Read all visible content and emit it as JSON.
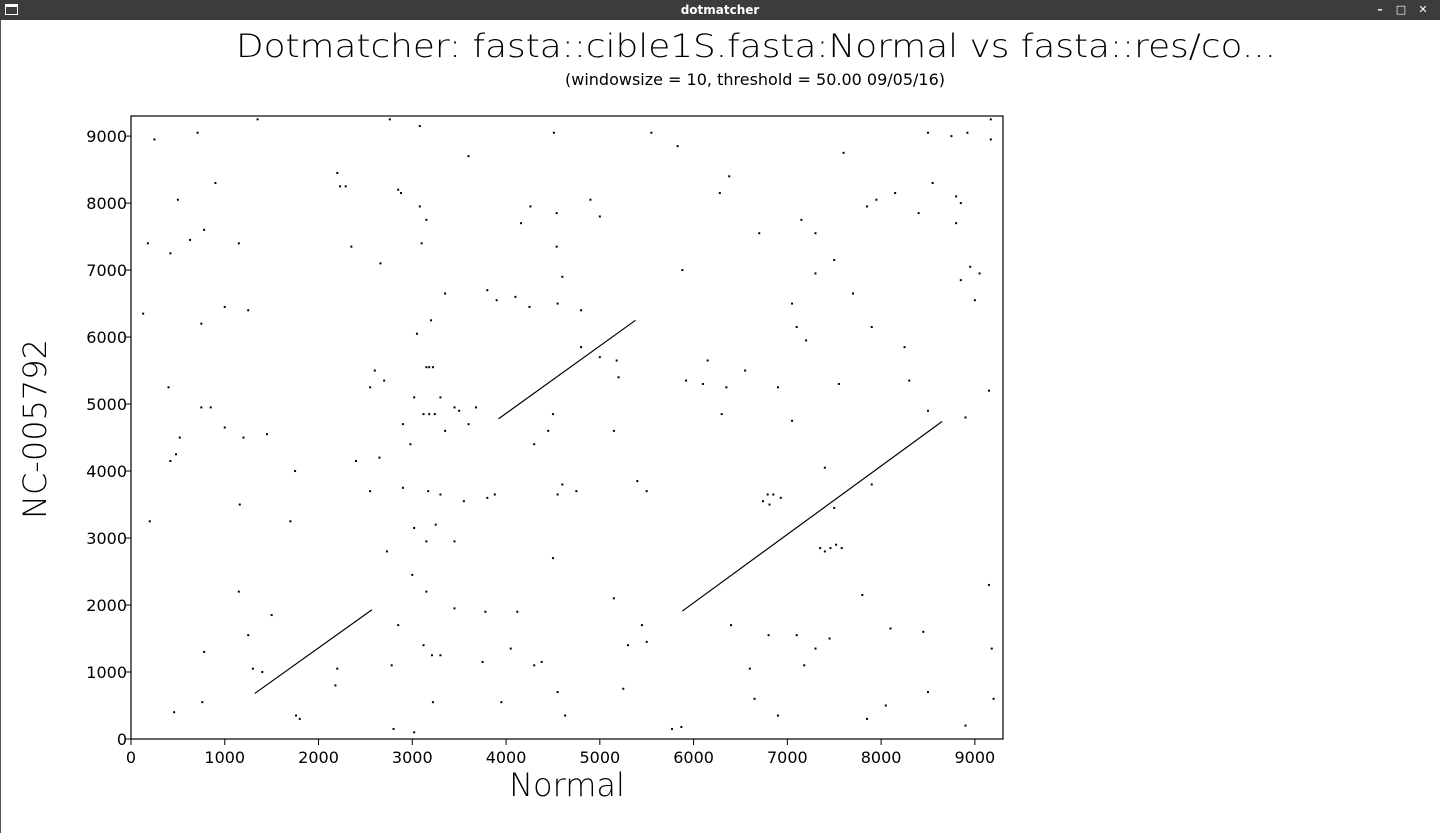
{
  "window": {
    "title": "dotmatcher"
  },
  "titlebar_icons": [
    "app-window-icon",
    "minimize-icon",
    "maximize-icon",
    "close-icon"
  ],
  "chart_data": {
    "type": "scatter",
    "title": "Dotmatcher: fasta::cible1S.fasta:Normal vs fasta::res/co...",
    "subtitle": "(windowsize = 10, threshold = 50.00  09/05/16)",
    "xlabel": "Normal",
    "ylabel": "NC-005792",
    "xlim": [
      0,
      9300
    ],
    "ylim": [
      0,
      9300
    ],
    "xticks": [
      0,
      1000,
      2000,
      3000,
      4000,
      5000,
      6000,
      7000,
      8000,
      9000
    ],
    "yticks": [
      0,
      1000,
      2000,
      3000,
      4000,
      5000,
      6000,
      7000,
      8000,
      9000
    ],
    "grid": false,
    "color": "#000000",
    "segments": [
      {
        "x": [
          1320,
          2570
        ],
        "y": [
          680,
          1930
        ]
      },
      {
        "x": [
          3920,
          5380
        ],
        "y": [
          4780,
          6250
        ]
      },
      {
        "x": [
          5880,
          8650
        ],
        "y": [
          1910,
          4740
        ]
      }
    ],
    "points": [
      [
        250,
        8950
      ],
      [
        710,
        9050
      ],
      [
        1350,
        9250
      ],
      [
        2760,
        9250
      ],
      [
        3080,
        9150
      ],
      [
        4510,
        9050
      ],
      [
        5550,
        9050
      ],
      [
        5830,
        8850
      ],
      [
        8500,
        9050
      ],
      [
        8920,
        9050
      ],
      [
        9170,
        9250
      ],
      [
        9170,
        8950
      ],
      [
        500,
        8050
      ],
      [
        900,
        8300
      ],
      [
        1150,
        7400
      ],
      [
        1250,
        6400
      ],
      [
        630,
        7450
      ],
      [
        780,
        7600
      ],
      [
        180,
        7400
      ],
      [
        420,
        7250
      ],
      [
        130,
        6350
      ],
      [
        750,
        6200
      ],
      [
        1000,
        6450
      ],
      [
        400,
        5250
      ],
      [
        750,
        4950
      ],
      [
        850,
        4950
      ],
      [
        1000,
        4650
      ],
      [
        1200,
        4500
      ],
      [
        1450,
        4550
      ],
      [
        520,
        4500
      ],
      [
        480,
        4250
      ],
      [
        420,
        4150
      ],
      [
        200,
        3250
      ],
      [
        1160,
        3500
      ],
      [
        1150,
        2200
      ],
      [
        1250,
        1550
      ],
      [
        1300,
        1050
      ],
      [
        460,
        400
      ],
      [
        760,
        550
      ],
      [
        780,
        1300
      ],
      [
        1400,
        1000
      ],
      [
        1500,
        1850
      ],
      [
        1700,
        3250
      ],
      [
        1750,
        4000
      ],
      [
        2200,
        8450
      ],
      [
        2230,
        8250
      ],
      [
        2290,
        8250
      ],
      [
        2850,
        8200
      ],
      [
        2880,
        8150
      ],
      [
        3080,
        7950
      ],
      [
        3100,
        7400
      ],
      [
        3150,
        7750
      ],
      [
        2350,
        7350
      ],
      [
        2660,
        7100
      ],
      [
        3350,
        6650
      ],
      [
        3600,
        8700
      ],
      [
        3800,
        6700
      ],
      [
        3900,
        6550
      ],
      [
        3200,
        6250
      ],
      [
        3050,
        6050
      ],
      [
        3150,
        5550
      ],
      [
        3180,
        5550
      ],
      [
        3220,
        5550
      ],
      [
        3120,
        4850
      ],
      [
        3180,
        4850
      ],
      [
        3240,
        4850
      ],
      [
        2900,
        4700
      ],
      [
        3450,
        4950
      ],
      [
        2700,
        5350
      ],
      [
        2600,
        5500
      ],
      [
        2550,
        5250
      ],
      [
        3020,
        5100
      ],
      [
        3300,
        5100
      ],
      [
        3350,
        4600
      ],
      [
        3500,
        4900
      ],
      [
        3680,
        4950
      ],
      [
        3600,
        4700
      ],
      [
        2980,
        4400
      ],
      [
        2650,
        4200
      ],
      [
        2400,
        4150
      ],
      [
        2550,
        3700
      ],
      [
        2900,
        3750
      ],
      [
        3170,
        3700
      ],
      [
        3300,
        3650
      ],
      [
        3550,
        3550
      ],
      [
        3800,
        3600
      ],
      [
        3880,
        3650
      ],
      [
        3250,
        3200
      ],
      [
        3020,
        3150
      ],
      [
        3150,
        2950
      ],
      [
        3450,
        2950
      ],
      [
        2730,
        2800
      ],
      [
        3000,
        2450
      ],
      [
        3150,
        2200
      ],
      [
        3450,
        1950
      ],
      [
        3780,
        1900
      ],
      [
        4120,
        1900
      ],
      [
        2850,
        1700
      ],
      [
        3120,
        1400
      ],
      [
        3210,
        1250
      ],
      [
        3300,
        1250
      ],
      [
        3750,
        1150
      ],
      [
        4050,
        1350
      ],
      [
        4300,
        1100
      ],
      [
        4380,
        1150
      ],
      [
        2780,
        1100
      ],
      [
        2800,
        150
      ],
      [
        3020,
        100
      ],
      [
        3950,
        550
      ],
      [
        3220,
        550
      ],
      [
        2180,
        800
      ],
      [
        2200,
        1050
      ],
      [
        1760,
        350
      ],
      [
        1800,
        300
      ],
      [
        4260,
        7950
      ],
      [
        4160,
        7700
      ],
      [
        4540,
        7850
      ],
      [
        4900,
        8050
      ],
      [
        5000,
        7800
      ],
      [
        4600,
        6900
      ],
      [
        4540,
        7350
      ],
      [
        4800,
        6400
      ],
      [
        4550,
        6500
      ],
      [
        4250,
        6450
      ],
      [
        4100,
        6600
      ],
      [
        4800,
        5850
      ],
      [
        5000,
        5700
      ],
      [
        5180,
        5650
      ],
      [
        4500,
        4850
      ],
      [
        4450,
        4600
      ],
      [
        4300,
        4400
      ],
      [
        4600,
        3800
      ],
      [
        4750,
        3700
      ],
      [
        4550,
        3650
      ],
      [
        5400,
        3850
      ],
      [
        5500,
        3700
      ],
      [
        5150,
        4600
      ],
      [
        5200,
        5400
      ],
      [
        4500,
        2700
      ],
      [
        5150,
        2100
      ],
      [
        5450,
        1700
      ],
      [
        5300,
        1400
      ],
      [
        5500,
        1450
      ],
      [
        4550,
        700
      ],
      [
        4630,
        350
      ],
      [
        5250,
        750
      ],
      [
        5870,
        180
      ],
      [
        5770,
        150
      ],
      [
        5880,
        7000
      ],
      [
        6380,
        8400
      ],
      [
        6280,
        8150
      ],
      [
        6700,
        7550
      ],
      [
        6150,
        5650
      ],
      [
        5920,
        5350
      ],
      [
        6100,
        5300
      ],
      [
        6300,
        4850
      ],
      [
        6350,
        5250
      ],
      [
        6550,
        5500
      ],
      [
        6900,
        5250
      ],
      [
        6740,
        3550
      ],
      [
        6790,
        3650
      ],
      [
        6850,
        3650
      ],
      [
        6930,
        3600
      ],
      [
        6810,
        3500
      ],
      [
        7100,
        6150
      ],
      [
        7150,
        7750
      ],
      [
        7300,
        7550
      ],
      [
        7300,
        6950
      ],
      [
        7050,
        6500
      ],
      [
        7200,
        5950
      ],
      [
        7050,
        4750
      ],
      [
        7400,
        4050
      ],
      [
        7350,
        2850
      ],
      [
        7400,
        2800
      ],
      [
        7460,
        2850
      ],
      [
        7520,
        2900
      ],
      [
        7580,
        2850
      ],
      [
        7100,
        1550
      ],
      [
        7180,
        1100
      ],
      [
        7300,
        1350
      ],
      [
        7450,
        1500
      ],
      [
        6800,
        1550
      ],
      [
        6400,
        1700
      ],
      [
        6600,
        1050
      ],
      [
        6650,
        600
      ],
      [
        6900,
        350
      ],
      [
        7500,
        7150
      ],
      [
        7600,
        8750
      ],
      [
        7850,
        7950
      ],
      [
        7950,
        8050
      ],
      [
        8150,
        8150
      ],
      [
        7900,
        6150
      ],
      [
        8400,
        7850
      ],
      [
        8550,
        8300
      ],
      [
        8250,
        5850
      ],
      [
        8300,
        5350
      ],
      [
        8500,
        4900
      ],
      [
        7700,
        6650
      ],
      [
        7550,
        5300
      ],
      [
        7900,
        3800
      ],
      [
        7500,
        3450
      ],
      [
        7800,
        2150
      ],
      [
        8100,
        1650
      ],
      [
        8450,
        1600
      ],
      [
        8500,
        700
      ],
      [
        8050,
        500
      ],
      [
        7850,
        300
      ],
      [
        8750,
        9000
      ],
      [
        8800,
        7700
      ],
      [
        8800,
        8100
      ],
      [
        8850,
        8000
      ],
      [
        8950,
        7050
      ],
      [
        9050,
        6950
      ],
      [
        9000,
        6550
      ],
      [
        8850,
        6850
      ],
      [
        8900,
        4800
      ],
      [
        9150,
        5200
      ],
      [
        9180,
        1350
      ],
      [
        9200,
        600
      ],
      [
        9150,
        2300
      ],
      [
        8900,
        200
      ]
    ]
  }
}
